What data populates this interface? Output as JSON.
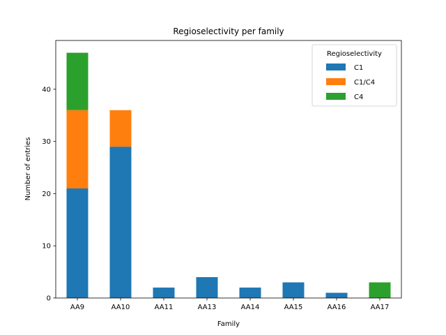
{
  "chart_data": {
    "type": "bar",
    "stacked": true,
    "title": "Regioselectivity per family",
    "xlabel": "Family",
    "ylabel": "Number of entries",
    "categories": [
      "AA9",
      "AA10",
      "AA11",
      "AA13",
      "AA14",
      "AA15",
      "AA16",
      "AA17"
    ],
    "series": [
      {
        "name": "C1",
        "color": "#1f77b4",
        "values": [
          21,
          29,
          2,
          4,
          2,
          3,
          1,
          0
        ]
      },
      {
        "name": "C1/C4",
        "color": "#ff7f0e",
        "values": [
          15,
          7,
          0,
          0,
          0,
          0,
          0,
          0
        ]
      },
      {
        "name": "C4",
        "color": "#2ca02c",
        "values": [
          11,
          0,
          0,
          0,
          0,
          0,
          0,
          3
        ]
      }
    ],
    "ylim": [
      0,
      49.35
    ],
    "yticks": [
      0,
      10,
      20,
      30,
      40
    ],
    "legend": {
      "title": "Regioselectivity",
      "position": "top-right"
    },
    "grid": false
  }
}
